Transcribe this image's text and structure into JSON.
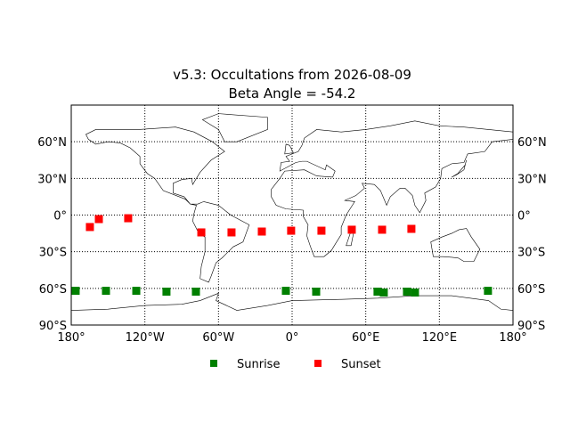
{
  "chart_data": {
    "type": "scatter",
    "title": "v5.3: Occultations from 2026-08-09",
    "subtitle": "Beta Angle = -54.2",
    "xlim": [
      -180,
      180
    ],
    "ylim": [
      -90,
      90
    ],
    "xticks": [
      {
        "value": -180,
        "label": "180°"
      },
      {
        "value": -120,
        "label": "120°W"
      },
      {
        "value": -60,
        "label": "60°W"
      },
      {
        "value": 0,
        "label": "0°"
      },
      {
        "value": 60,
        "label": "60°E"
      },
      {
        "value": 120,
        "label": "120°E"
      },
      {
        "value": 180,
        "label": "180°"
      }
    ],
    "yticks": [
      {
        "value": -90,
        "label": "90°S"
      },
      {
        "value": -60,
        "label": "60°S"
      },
      {
        "value": -30,
        "label": "30°S"
      },
      {
        "value": 0,
        "label": "0°"
      },
      {
        "value": 30,
        "label": "30°N"
      },
      {
        "value": 60,
        "label": "60°N"
      }
    ],
    "grid": true,
    "legend": "bottom",
    "series": [
      {
        "name": "Sunrise",
        "color": "#008000",
        "x": [
          -176.4,
          -151.7,
          -127.0,
          -102.4,
          -78.4,
          -5.1,
          19.6,
          69.6,
          74.7,
          93.6,
          100.1,
          159.6
        ],
        "y": [
          -62.0,
          -62.0,
          -62.0,
          -62.7,
          -62.7,
          -62.0,
          -62.7,
          -62.7,
          -63.4,
          -62.7,
          -63.4,
          -62.0
        ]
      },
      {
        "name": "Sunset",
        "color": "#ff0000",
        "x": [
          -164.8,
          -157.5,
          -133.6,
          -74.0,
          -49.4,
          -24.7,
          -0.8,
          23.9,
          48.6,
          73.3,
          97.2
        ],
        "y": [
          -9.8,
          -3.3,
          -2.6,
          -14.2,
          -14.2,
          -13.5,
          -12.8,
          -12.8,
          -12.0,
          -12.0,
          -11.3
        ]
      }
    ]
  }
}
